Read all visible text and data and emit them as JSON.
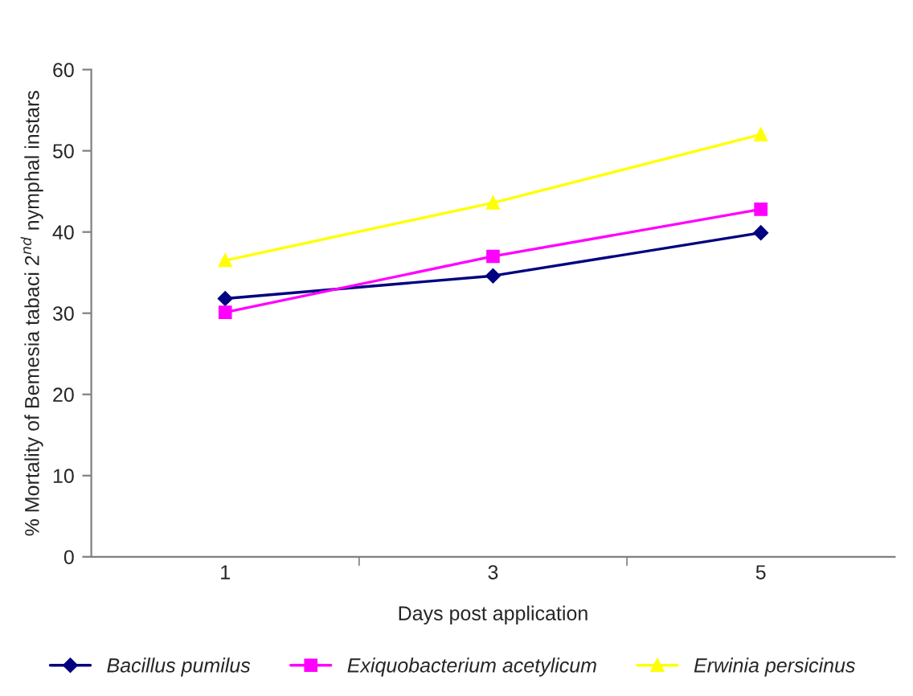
{
  "chart_data": {
    "type": "line",
    "xlabel": "Days post application",
    "ylabel": "% Mortality of Bemesia tabaci 2$^{nd}$ nymphal instars",
    "categories": [
      "1",
      "3",
      "5"
    ],
    "series": [
      {
        "name": "Bacillus pumilus",
        "color": "#000080",
        "marker": "diamond",
        "values": [
          31.8,
          34.6,
          39.9
        ]
      },
      {
        "name": "Exiquobacterium acetylicum",
        "color": "#ff00ff",
        "marker": "square",
        "values": [
          30.1,
          37.0,
          42.8
        ]
      },
      {
        "name": "Erwinia persicinus",
        "color": "#ffff00",
        "marker": "triangle",
        "values": [
          36.5,
          43.6,
          52.0
        ]
      }
    ],
    "ylim": [
      0,
      60
    ],
    "yticks": [
      0,
      10,
      20,
      30,
      40,
      50,
      60
    ],
    "grid": false,
    "legend": "bottom",
    "line_style": "solid"
  }
}
